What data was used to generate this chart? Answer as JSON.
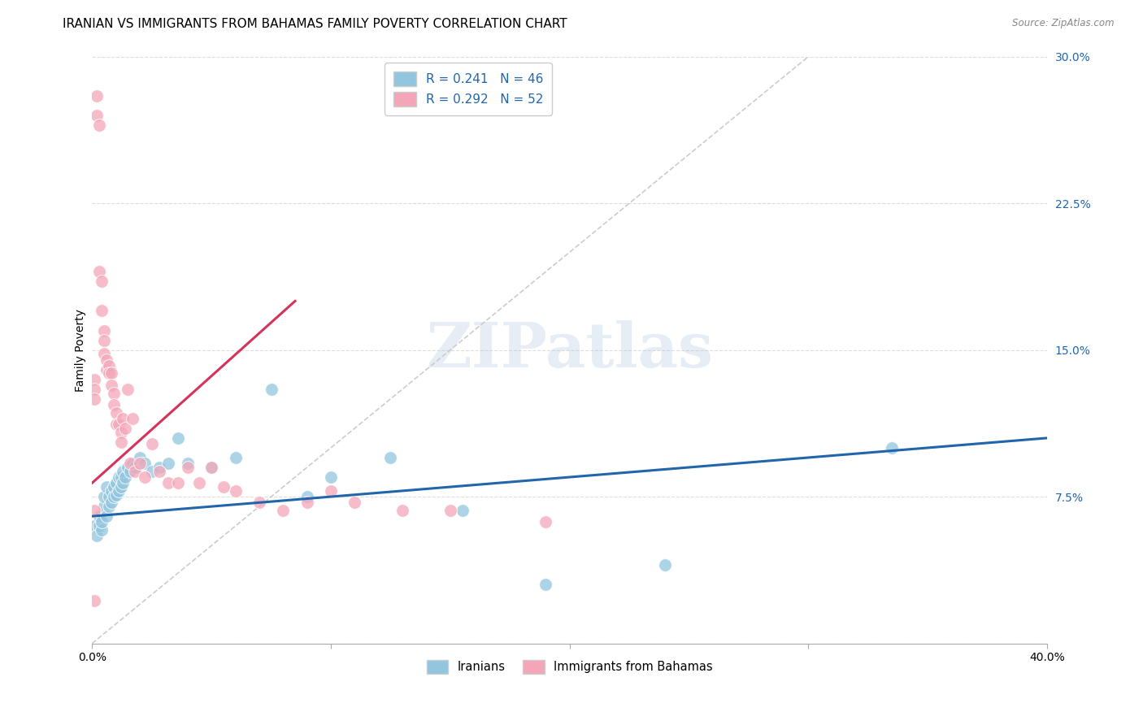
{
  "title": "IRANIAN VS IMMIGRANTS FROM BAHAMAS FAMILY POVERTY CORRELATION CHART",
  "source": "Source: ZipAtlas.com",
  "ylabel": "Family Poverty",
  "xlim": [
    0.0,
    0.4
  ],
  "ylim": [
    0.0,
    0.3
  ],
  "xticks": [
    0.0,
    0.1,
    0.2,
    0.3,
    0.4
  ],
  "xtick_labels": [
    "0.0%",
    "",
    "",
    "",
    "40.0%"
  ],
  "yticks": [
    0.0,
    0.075,
    0.15,
    0.225,
    0.3
  ],
  "ytick_labels": [
    "",
    "7.5%",
    "15.0%",
    "22.5%",
    "30.0%"
  ],
  "legend_r1": "R = 0.241",
  "legend_n1": "N = 46",
  "legend_r2": "R = 0.292",
  "legend_n2": "N = 52",
  "blue_color": "#92c5de",
  "pink_color": "#f4a6b8",
  "trend_blue_color": "#2166ac",
  "trend_pink_color": "#d6335a",
  "diagonal_color": "#cccccc",
  "watermark": "ZIPatlas",
  "iranians_x": [
    0.001,
    0.002,
    0.003,
    0.003,
    0.004,
    0.004,
    0.005,
    0.005,
    0.006,
    0.006,
    0.007,
    0.007,
    0.008,
    0.008,
    0.009,
    0.009,
    0.01,
    0.01,
    0.011,
    0.011,
    0.012,
    0.012,
    0.013,
    0.013,
    0.014,
    0.015,
    0.016,
    0.017,
    0.018,
    0.02,
    0.022,
    0.025,
    0.028,
    0.032,
    0.036,
    0.04,
    0.05,
    0.06,
    0.075,
    0.09,
    0.1,
    0.125,
    0.155,
    0.19,
    0.24,
    0.335
  ],
  "iranians_y": [
    0.06,
    0.055,
    0.06,
    0.065,
    0.058,
    0.062,
    0.07,
    0.075,
    0.065,
    0.08,
    0.07,
    0.075,
    0.072,
    0.078,
    0.075,
    0.08,
    0.082,
    0.076,
    0.078,
    0.085,
    0.08,
    0.085,
    0.082,
    0.088,
    0.085,
    0.09,
    0.088,
    0.092,
    0.09,
    0.095,
    0.092,
    0.088,
    0.09,
    0.092,
    0.105,
    0.092,
    0.09,
    0.095,
    0.13,
    0.075,
    0.085,
    0.095,
    0.068,
    0.03,
    0.04,
    0.1
  ],
  "bahamas_x": [
    0.001,
    0.001,
    0.001,
    0.001,
    0.002,
    0.002,
    0.003,
    0.003,
    0.004,
    0.004,
    0.005,
    0.005,
    0.005,
    0.006,
    0.006,
    0.007,
    0.007,
    0.008,
    0.008,
    0.009,
    0.009,
    0.01,
    0.01,
    0.011,
    0.012,
    0.012,
    0.013,
    0.014,
    0.015,
    0.016,
    0.017,
    0.018,
    0.02,
    0.022,
    0.025,
    0.028,
    0.032,
    0.036,
    0.04,
    0.045,
    0.05,
    0.055,
    0.06,
    0.07,
    0.08,
    0.09,
    0.1,
    0.11,
    0.13,
    0.15,
    0.19,
    0.001
  ],
  "bahamas_y": [
    0.135,
    0.13,
    0.125,
    0.068,
    0.28,
    0.27,
    0.265,
    0.19,
    0.185,
    0.17,
    0.16,
    0.155,
    0.148,
    0.145,
    0.14,
    0.142,
    0.138,
    0.138,
    0.132,
    0.128,
    0.122,
    0.118,
    0.112,
    0.112,
    0.108,
    0.103,
    0.115,
    0.11,
    0.13,
    0.092,
    0.115,
    0.088,
    0.092,
    0.085,
    0.102,
    0.088,
    0.082,
    0.082,
    0.09,
    0.082,
    0.09,
    0.08,
    0.078,
    0.072,
    0.068,
    0.072,
    0.078,
    0.072,
    0.068,
    0.068,
    0.062,
    0.022
  ],
  "background_color": "#ffffff",
  "grid_color": "#dddddd",
  "title_fontsize": 11,
  "axis_label_fontsize": 10,
  "tick_fontsize": 10
}
